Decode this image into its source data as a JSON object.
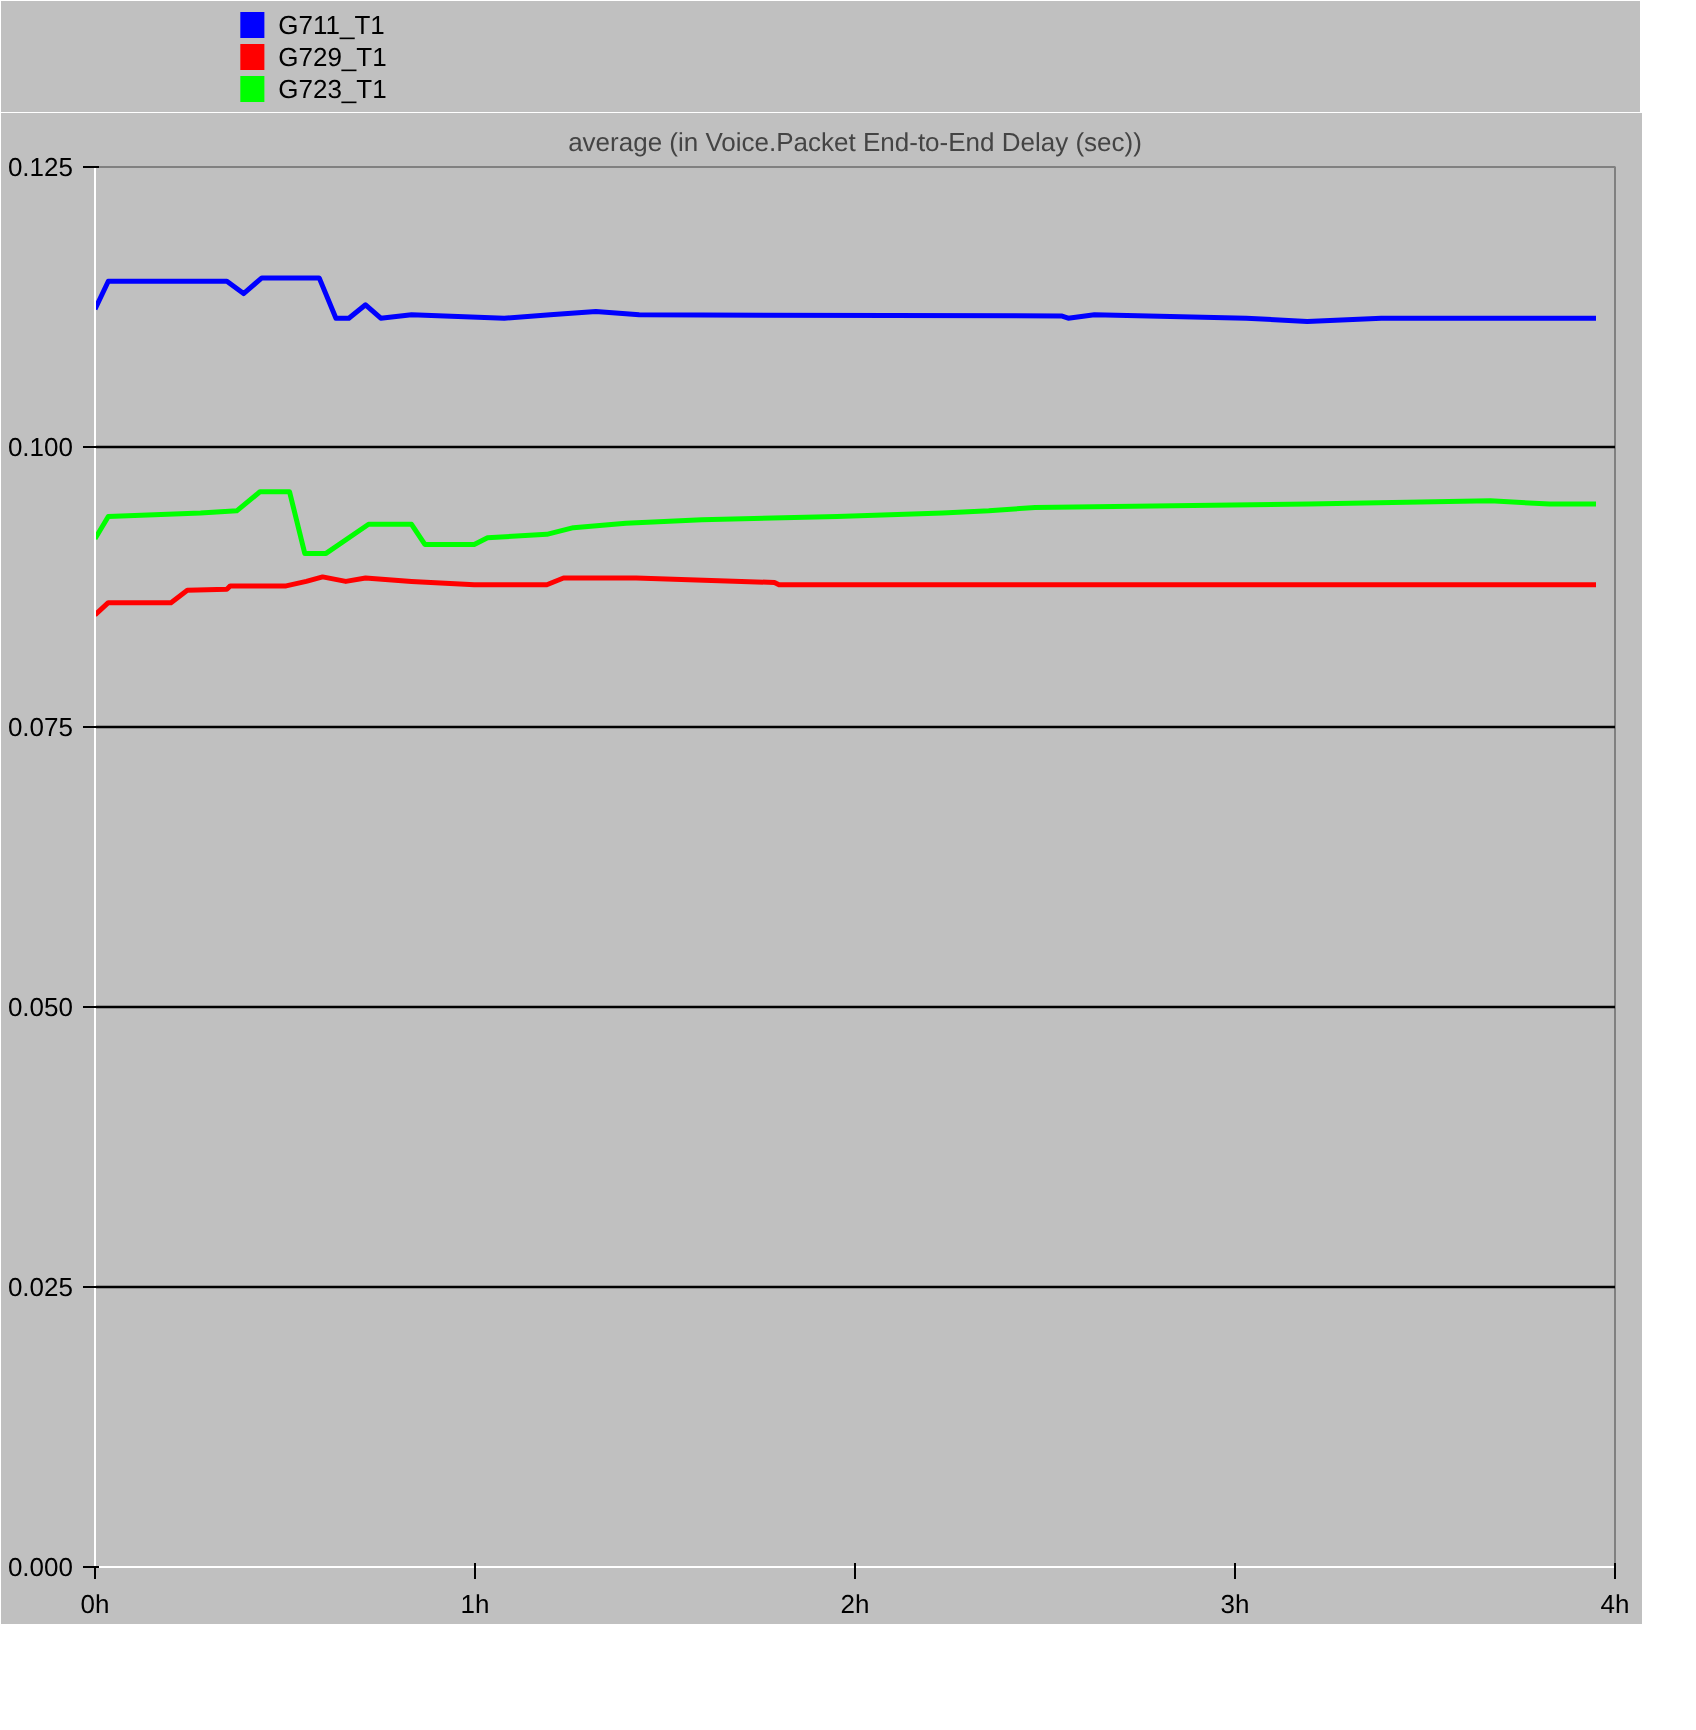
{
  "chart_data": {
    "type": "line",
    "title": "average (in Voice.Packet End-to-End Delay (sec))",
    "xlim": [
      0,
      4
    ],
    "xticks": [
      {
        "value": 0,
        "label": "0h"
      },
      {
        "value": 1,
        "label": "1h"
      },
      {
        "value": 2,
        "label": "2h"
      },
      {
        "value": 3,
        "label": "3h"
      },
      {
        "value": 4,
        "label": "4h"
      }
    ],
    "ylim": [
      0,
      0.125
    ],
    "yticks": [
      {
        "value": 0,
        "label": "0.000"
      },
      {
        "value": 0.025,
        "label": "0.025"
      },
      {
        "value": 0.05,
        "label": "0.050"
      },
      {
        "value": 0.075,
        "label": "0.075"
      },
      {
        "value": 0.1,
        "label": "0.100"
      },
      {
        "value": 0.125,
        "label": "0.125"
      }
    ],
    "grid": "y",
    "legend": "top left",
    "series": [
      {
        "name": "G711_T1",
        "color": "#0000ff",
        "x": [
          0,
          0.035,
          0.347,
          0.391,
          0.439,
          0.59,
          0.634,
          0.668,
          0.712,
          0.752,
          0.833,
          1.077,
          1.198,
          1.318,
          1.432,
          2.543,
          2.561,
          2.63,
          3.03,
          3.19,
          3.385,
          3.95
        ],
        "values": [
          0.1123,
          0.1148,
          0.1148,
          0.1137,
          0.1151,
          0.1151,
          0.1115,
          0.1115,
          0.1127,
          0.1115,
          0.1118,
          0.1115,
          0.1118,
          0.1121,
          0.1118,
          0.1117,
          0.1115,
          0.1118,
          0.1115,
          0.1112,
          0.1115,
          0.1115
        ]
      },
      {
        "name": "G729_T1",
        "color": "#ff0000",
        "x": [
          0,
          0.035,
          0.2,
          0.243,
          0.347,
          0.356,
          0.503,
          0.556,
          0.599,
          0.66,
          0.712,
          0.833,
          0.998,
          1.189,
          1.233,
          1.424,
          1.788,
          1.8,
          3.95
        ],
        "values": [
          0.085,
          0.0861,
          0.0861,
          0.0872,
          0.0873,
          0.0876,
          0.0876,
          0.088,
          0.0884,
          0.088,
          0.0883,
          0.088,
          0.0877,
          0.0877,
          0.0883,
          0.0883,
          0.0879,
          0.0877,
          0.0877
        ]
      },
      {
        "name": "G723_T1",
        "color": "#00ff00",
        "x": [
          0,
          0.035,
          0.278,
          0.373,
          0.434,
          0.512,
          0.552,
          0.608,
          0.72,
          0.833,
          0.868,
          0.998,
          1.033,
          1.189,
          1.259,
          1.397,
          1.597,
          1.953,
          2.231,
          2.352,
          2.474,
          3.194,
          3.672,
          3.828,
          3.95
        ],
        "values": [
          0.0918,
          0.0938,
          0.0941,
          0.0943,
          0.096,
          0.096,
          0.0905,
          0.0905,
          0.0931,
          0.0931,
          0.0913,
          0.0913,
          0.0919,
          0.0922,
          0.0928,
          0.0932,
          0.0935,
          0.0938,
          0.0941,
          0.0943,
          0.0946,
          0.0949,
          0.0952,
          0.0949,
          0.0949
        ]
      }
    ]
  }
}
